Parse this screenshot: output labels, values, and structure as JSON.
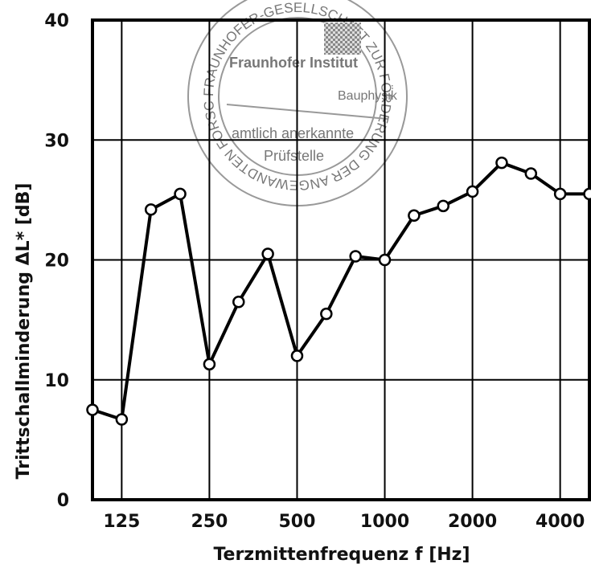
{
  "chart_data": {
    "type": "line",
    "title": "",
    "xlabel": "Terzmittenfrequenz f [Hz]",
    "ylabel": "Trittschallminderung ΔL* [dB]",
    "x": [
      "100",
      "125",
      "160",
      "200",
      "250",
      "315",
      "400",
      "500",
      "630",
      "800",
      "1000",
      "1250",
      "1600",
      "2000",
      "2500",
      "3150",
      "4000",
      "5000"
    ],
    "x_tick_labels": [
      "125",
      "250",
      "500",
      "1000",
      "2000",
      "4000"
    ],
    "y_tick_labels": [
      "0",
      "10",
      "20",
      "30",
      "40"
    ],
    "ylim": [
      0,
      40
    ],
    "grid": true,
    "legend": "none",
    "series": [
      {
        "values": [
          7.5,
          6.7,
          24.2,
          25.5,
          11.3,
          16.5,
          20.5,
          12.0,
          15.5,
          20.3,
          20.0,
          23.7,
          24.5,
          25.7,
          28.1,
          27.2,
          25.5,
          25.5
        ]
      }
    ]
  },
  "stamp": {
    "ring_text": "FRAUNHOFER-GESELLSCHAFT ZUR FÖRDERUNG DER ANGEWANDTEN FORSCHUNG e.V.",
    "line1": "Fraunhofer Institut",
    "line2": "Bauphysik",
    "line3": "amtlich anerkannte",
    "line4": "Prüfstelle"
  }
}
